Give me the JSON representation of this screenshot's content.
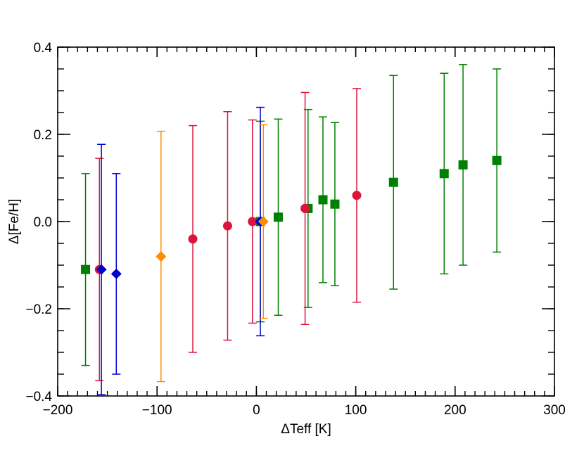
{
  "chart_data": {
    "type": "scatter",
    "title": "",
    "xlabel": "ΔTeff [K]",
    "ylabel": "Δ[Fe/H]",
    "xlim": [
      -200,
      300
    ],
    "ylim": [
      -0.4,
      0.4
    ],
    "xticks": [
      -200,
      -100,
      0,
      100,
      200,
      300
    ],
    "xtick_labels": [
      "−200",
      "−100",
      "0",
      "100",
      "200",
      "300"
    ],
    "yticks": [
      -0.4,
      -0.2,
      0.0,
      0.2,
      0.4
    ],
    "ytick_labels": [
      "−0.4",
      "−0.2",
      "0.0",
      "0.2",
      "0.4"
    ],
    "grid": false,
    "legend": "none",
    "series": [
      {
        "marker": "square",
        "color": "#008000",
        "points": [
          {
            "x": -172,
            "y": -0.11,
            "err": 0.22
          },
          {
            "x": 4,
            "y": 0.0,
            "err": 0.23
          },
          {
            "x": 22,
            "y": 0.01,
            "err": 0.225
          },
          {
            "x": 52,
            "y": 0.03,
            "err": 0.227
          },
          {
            "x": 67,
            "y": 0.05,
            "err": 0.19
          },
          {
            "x": 79,
            "y": 0.04,
            "err": 0.187
          },
          {
            "x": 138,
            "y": 0.09,
            "err": 0.245
          },
          {
            "x": 189,
            "y": 0.11,
            "err": 0.23
          },
          {
            "x": 208,
            "y": 0.13,
            "err": 0.23
          },
          {
            "x": 242,
            "y": 0.14,
            "err": 0.21
          }
        ]
      },
      {
        "marker": "circle",
        "color": "#dc143c",
        "points": [
          {
            "x": -158,
            "y": -0.11,
            "err": 0.255
          },
          {
            "x": -64,
            "y": -0.04,
            "err": 0.26
          },
          {
            "x": -29,
            "y": -0.01,
            "err": 0.262
          },
          {
            "x": -4,
            "y": 0.0,
            "err": 0.233
          },
          {
            "x": 49,
            "y": 0.03,
            "err": 0.266
          },
          {
            "x": 101,
            "y": 0.06,
            "err": 0.245
          }
        ]
      },
      {
        "marker": "diamond",
        "color": "#0000cd",
        "points": [
          {
            "x": -156,
            "y": -0.11,
            "err": 0.287
          },
          {
            "x": -141,
            "y": -0.12,
            "err": 0.23
          },
          {
            "x": 4,
            "y": 0.0,
            "err": 0.262
          }
        ]
      },
      {
        "marker": "diamond",
        "color": "#ff8c00",
        "points": [
          {
            "x": -96,
            "y": -0.08,
            "err": 0.287
          },
          {
            "x": 7,
            "y": 0.0,
            "err": 0.222
          }
        ]
      }
    ]
  }
}
